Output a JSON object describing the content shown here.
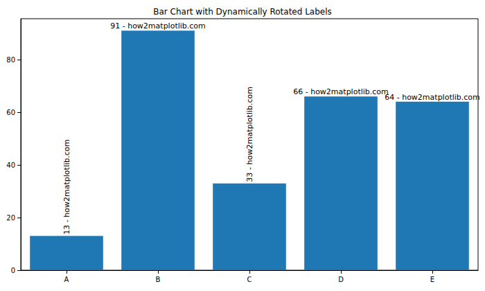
{
  "chart_data": {
    "type": "bar",
    "title": "Bar Chart with Dynamically Rotated Labels",
    "categories": [
      "A",
      "B",
      "C",
      "D",
      "E"
    ],
    "values": [
      13,
      91,
      33,
      66,
      64
    ],
    "value_labels": [
      "13 - how2matplotlib.com",
      "91 - how2matplotlib.com",
      "33 - how2matplotlib.com",
      "66 - how2matplotlib.com",
      "64 - how2matplotlib.com"
    ],
    "data_labels": true,
    "color": "#1f77b4",
    "ylim": [
      0,
      95.55
    ],
    "yticks": [
      0,
      20,
      40,
      60,
      80
    ],
    "grid": false
  }
}
